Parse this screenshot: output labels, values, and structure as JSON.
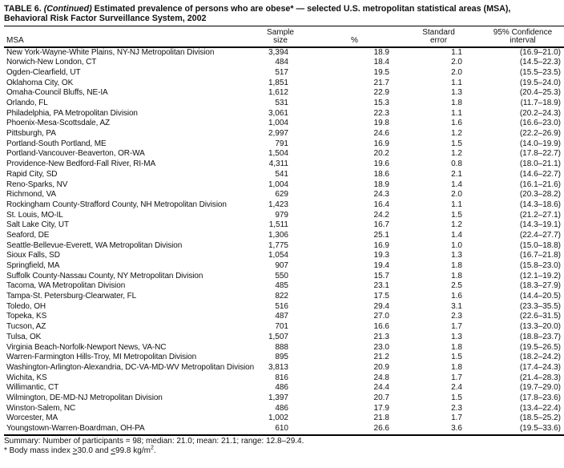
{
  "title": {
    "label": "TABLE 6.",
    "continued": "(Continued)",
    "line1_rest": "Estimated prevalence of persons who are obese* — selected U.S. metropolitan statistical areas (MSA),",
    "line2": "Behavioral Risk Factor Surveillance System, 2002"
  },
  "table": {
    "columns": [
      {
        "line1": "",
        "line2": "MSA"
      },
      {
        "line1": "Sample",
        "line2": "size"
      },
      {
        "line1": "",
        "line2": "%"
      },
      {
        "line1": "Standard",
        "line2": "error"
      },
      {
        "line1": "95% Confidence",
        "line2": "interval"
      }
    ],
    "rows": [
      {
        "msa": "New York-Wayne-White Plains, NY-NJ Metropolitan Division",
        "sample": "3,394",
        "pct": "18.9",
        "se": "1.1",
        "ci": "(16.9–21.0)"
      },
      {
        "msa": "Norwich-New London, CT",
        "sample": "484",
        "pct": "18.4",
        "se": "2.0",
        "ci": "(14.5–22.3)"
      },
      {
        "msa": "Ogden-Clearfield, UT",
        "sample": "517",
        "pct": "19.5",
        "se": "2.0",
        "ci": "(15.5–23.5)"
      },
      {
        "msa": "Oklahoma City, OK",
        "sample": "1,851",
        "pct": "21.7",
        "se": "1.1",
        "ci": "(19.5–24.0)"
      },
      {
        "msa": "Omaha-Council Bluffs, NE-IA",
        "sample": "1,612",
        "pct": "22.9",
        "se": "1.3",
        "ci": "(20.4–25.3)"
      },
      {
        "msa": "Orlando, FL",
        "sample": "531",
        "pct": "15.3",
        "se": "1.8",
        "ci": "(11.7–18.9)"
      },
      {
        "msa": "Philadelphia, PA Metropolitan Division",
        "sample": "3,061",
        "pct": "22.3",
        "se": "1.1",
        "ci": "(20.2–24.3)"
      },
      {
        "msa": "Phoenix-Mesa-Scottsdale, AZ",
        "sample": "1,004",
        "pct": "19.8",
        "se": "1.6",
        "ci": "(16.6–23.0)"
      },
      {
        "msa": "Pittsburgh, PA",
        "sample": "2,997",
        "pct": "24.6",
        "se": "1.2",
        "ci": "(22.2–26.9)"
      },
      {
        "msa": "Portland-South Portland, ME",
        "sample": "791",
        "pct": "16.9",
        "se": "1.5",
        "ci": "(14.0–19.9)"
      },
      {
        "msa": "Portland-Vancouver-Beaverton, OR-WA",
        "sample": "1,504",
        "pct": "20.2",
        "se": "1.2",
        "ci": "(17.8–22.7)"
      },
      {
        "msa": "Providence-New Bedford-Fall River, RI-MA",
        "sample": "4,311",
        "pct": "19.6",
        "se": "0.8",
        "ci": "(18.0–21.1)"
      },
      {
        "msa": "Rapid City, SD",
        "sample": "541",
        "pct": "18.6",
        "se": "2.1",
        "ci": "(14.6–22.7)"
      },
      {
        "msa": "Reno-Sparks, NV",
        "sample": "1,004",
        "pct": "18.9",
        "se": "1.4",
        "ci": "(16.1–21.6)"
      },
      {
        "msa": "Richmond, VA",
        "sample": "629",
        "pct": "24.3",
        "se": "2.0",
        "ci": "(20.3–28.2)"
      },
      {
        "msa": "Rockingham County-Strafford County, NH Metropolitan Division",
        "sample": "1,423",
        "pct": "16.4",
        "se": "1.1",
        "ci": "(14.3–18.6)"
      },
      {
        "msa": "St. Louis, MO-IL",
        "sample": "979",
        "pct": "24.2",
        "se": "1.5",
        "ci": "(21.2–27.1)"
      },
      {
        "msa": "Salt Lake City, UT",
        "sample": "1,511",
        "pct": "16.7",
        "se": "1.2",
        "ci": "(14.3–19.1)"
      },
      {
        "msa": "Seaford, DE",
        "sample": "1,306",
        "pct": "25.1",
        "se": "1.4",
        "ci": "(22.4–27.7)"
      },
      {
        "msa": "Seattle-Bellevue-Everett, WA Metropolitan Division",
        "sample": "1,775",
        "pct": "16.9",
        "se": "1.0",
        "ci": "(15.0–18.8)"
      },
      {
        "msa": "Sioux Falls, SD",
        "sample": "1,054",
        "pct": "19.3",
        "se": "1.3",
        "ci": "(16.7–21.8)"
      },
      {
        "msa": "Springfield, MA",
        "sample": "907",
        "pct": "19.4",
        "se": "1.8",
        "ci": "(15.8–23.0)"
      },
      {
        "msa": "Suffolk County-Nassau County, NY Metropolitan Division",
        "sample": "550",
        "pct": "15.7",
        "se": "1.8",
        "ci": "(12.1–19.2)"
      },
      {
        "msa": "Tacoma, WA Metropolitan Division",
        "sample": "485",
        "pct": "23.1",
        "se": "2.5",
        "ci": "(18.3–27.9)"
      },
      {
        "msa": "Tampa-St. Petersburg-Clearwater, FL",
        "sample": "822",
        "pct": "17.5",
        "se": "1.6",
        "ci": "(14.4–20.5)"
      },
      {
        "msa": "Toledo, OH",
        "sample": "516",
        "pct": "29.4",
        "se": "3.1",
        "ci": "(23.3–35.5)"
      },
      {
        "msa": "Topeka, KS",
        "sample": "487",
        "pct": "27.0",
        "se": "2.3",
        "ci": "(22.6–31.5)"
      },
      {
        "msa": "Tucson, AZ",
        "sample": "701",
        "pct": "16.6",
        "se": "1.7",
        "ci": "(13.3–20.0)"
      },
      {
        "msa": "Tulsa, OK",
        "sample": "1,507",
        "pct": "21.3",
        "se": "1.3",
        "ci": "(18.8–23.7)"
      },
      {
        "msa": "Virginia Beach-Norfolk-Newport News, VA-NC",
        "sample": "888",
        "pct": "23.0",
        "se": "1.8",
        "ci": "(19.5–26.5)"
      },
      {
        "msa": "Warren-Farmington Hills-Troy, MI Metropolitan Division",
        "sample": "895",
        "pct": "21.2",
        "se": "1.5",
        "ci": "(18.2–24.2)"
      },
      {
        "msa": "Washington-Arlington-Alexandria, DC-VA-MD-WV Metropolitan Division",
        "sample": "3,813",
        "pct": "20.9",
        "se": "1.8",
        "ci": "(17.4–24.3)"
      },
      {
        "msa": "Wichita, KS",
        "sample": "816",
        "pct": "24.8",
        "se": "1.7",
        "ci": "(21.4–28.3)"
      },
      {
        "msa": "Willimantic, CT",
        "sample": "486",
        "pct": "24.4",
        "se": "2.4",
        "ci": "(19.7–29.0)"
      },
      {
        "msa": "Wilmington, DE-MD-NJ Metropolitan Division",
        "sample": "1,397",
        "pct": "20.7",
        "se": "1.5",
        "ci": "(17.8–23.6)"
      },
      {
        "msa": "Winston-Salem, NC",
        "sample": "486",
        "pct": "17.9",
        "se": "2.3",
        "ci": "(13.4–22.4)"
      },
      {
        "msa": "Worcester, MA",
        "sample": "1,002",
        "pct": "21.8",
        "se": "1.7",
        "ci": "(18.5–25.2)"
      },
      {
        "msa": "Youngstown-Warren-Boardman, OH-PA",
        "sample": "610",
        "pct": "26.6",
        "se": "3.6",
        "ci": "(19.5–33.6)"
      }
    ]
  },
  "summary": {
    "text": "Summary: Number of participants = 98; median: 21.0; mean: 21.1; range: 12.8–29.4."
  },
  "footnote": {
    "prefix": "* Body mass index ",
    "ge": ">",
    "mid": "30.0 and ",
    "le": "<",
    "unit": "99.8 kg/m",
    "sup": "2",
    "end": "."
  }
}
